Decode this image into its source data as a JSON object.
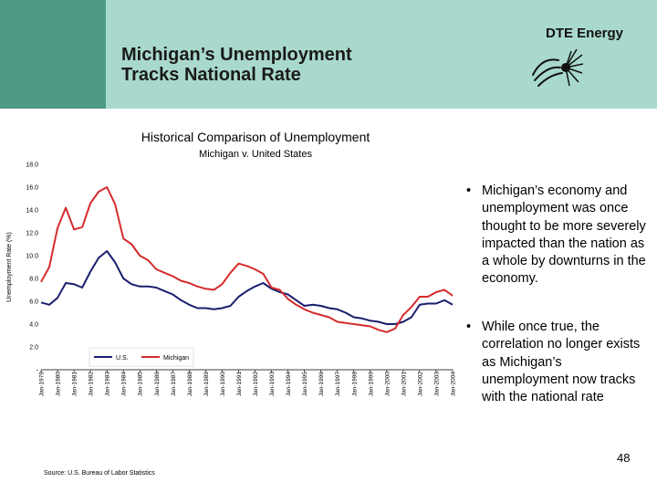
{
  "slide": {
    "title": "Michigan’s Unemployment Tracks National Rate",
    "logo_text": "DTE Energy",
    "bullets": [
      "Michigan’s economy and unemployment was once thought to be more severely impacted than the nation as a whole by downturns in the economy.",
      "While once true, the correlation no longer exists as Michigan’s unemployment now tracks with the national rate"
    ],
    "bullet_marker": "•",
    "page_number": "48",
    "source": "Source: U.S. Bureau of Labor Statistics"
  },
  "chart_data": {
    "type": "line",
    "title": "Historical Comparison of Unemployment",
    "subtitle": "Michigan v. United States",
    "ylabel": "Unemployment Rate (%)",
    "ylim": [
      0,
      18
    ],
    "y_ticks": [
      "-",
      "2.0",
      "4.0",
      "6.0",
      "8.0",
      "10.0",
      "12.0",
      "14.0",
      "16.0",
      "18.0"
    ],
    "categories": [
      "Jan-1979",
      "Jan-1980",
      "Jan-1981",
      "Jan-1982",
      "Jan-1983",
      "Jan-1984",
      "Jan-1985",
      "Jan-1986",
      "Jan-1987",
      "Jan-1988",
      "Jan-1989",
      "Jan-1990",
      "Jan-1991",
      "Jan-1992",
      "Jan-1993",
      "Jan-1994",
      "Jan-1995",
      "Jan-1996",
      "Jan-1997",
      "Jan-1998",
      "Jan-1999",
      "Jan-2000",
      "Jan-2001",
      "Jan-2002",
      "Jan-2003",
      "Jan-2004"
    ],
    "series": [
      {
        "name": "U.S.",
        "color": "#1a1f6e",
        "x": [
          1979,
          1979.5,
          1980,
          1980.5,
          1981,
          1981.5,
          1982,
          1982.5,
          1983,
          1983.5,
          1984,
          1984.5,
          1985,
          1985.5,
          1986,
          1986.5,
          1987,
          1987.5,
          1988,
          1988.5,
          1989,
          1989.5,
          1990,
          1990.5,
          1991,
          1991.5,
          1992,
          1992.5,
          1993,
          1993.5,
          1994,
          1994.5,
          1995,
          1995.5,
          1996,
          1996.5,
          1997,
          1997.5,
          1998,
          1998.5,
          1999,
          1999.5,
          2000,
          2000.5,
          2001,
          2001.5,
          2002,
          2002.5,
          2003,
          2003.5,
          2004
        ],
        "values": [
          5.9,
          5.7,
          6.3,
          7.6,
          7.5,
          7.2,
          8.6,
          9.8,
          10.4,
          9.4,
          8.0,
          7.5,
          7.3,
          7.3,
          7.2,
          6.9,
          6.6,
          6.1,
          5.7,
          5.4,
          5.4,
          5.3,
          5.4,
          5.6,
          6.4,
          6.9,
          7.3,
          7.6,
          7.1,
          6.8,
          6.6,
          6.1,
          5.6,
          5.7,
          5.6,
          5.4,
          5.3,
          5.0,
          4.6,
          4.5,
          4.3,
          4.2,
          4.0,
          4.0,
          4.2,
          4.6,
          5.7,
          5.8,
          5.8,
          6.1,
          5.7
        ]
      },
      {
        "name": "Michigan",
        "color": "#d62b2b",
        "x": [
          1979,
          1979.5,
          1980,
          1980.5,
          1981,
          1981.5,
          1982,
          1982.5,
          1983,
          1983.5,
          1984,
          1984.5,
          1985,
          1985.5,
          1986,
          1986.5,
          1987,
          1987.5,
          1988,
          1988.5,
          1989,
          1989.5,
          1990,
          1990.5,
          1991,
          1991.5,
          1992,
          1992.5,
          1993,
          1993.5,
          1994,
          1994.5,
          1995,
          1995.5,
          1996,
          1996.5,
          1997,
          1997.5,
          1998,
          1998.5,
          1999,
          1999.5,
          2000,
          2000.5,
          2001,
          2001.5,
          2002,
          2002.5,
          2003,
          2003.5,
          2004
        ],
        "values": [
          7.7,
          9.0,
          12.4,
          14.2,
          12.3,
          12.5,
          14.6,
          15.6,
          16.0,
          14.5,
          11.5,
          11.0,
          10.0,
          9.6,
          8.8,
          8.5,
          8.2,
          7.8,
          7.6,
          7.3,
          7.1,
          7.0,
          7.5,
          8.5,
          9.3,
          9.1,
          8.8,
          8.4,
          7.2,
          7.0,
          6.2,
          5.7,
          5.3,
          5.0,
          4.8,
          4.6,
          4.2,
          4.1,
          4.0,
          3.9,
          3.8,
          3.5,
          3.3,
          3.6,
          4.8,
          5.5,
          6.4,
          6.4,
          6.8,
          7.0,
          6.5
        ]
      }
    ],
    "legend": {
      "position": "bottom-left",
      "entries": [
        "U.S.",
        "Michigan"
      ]
    }
  }
}
